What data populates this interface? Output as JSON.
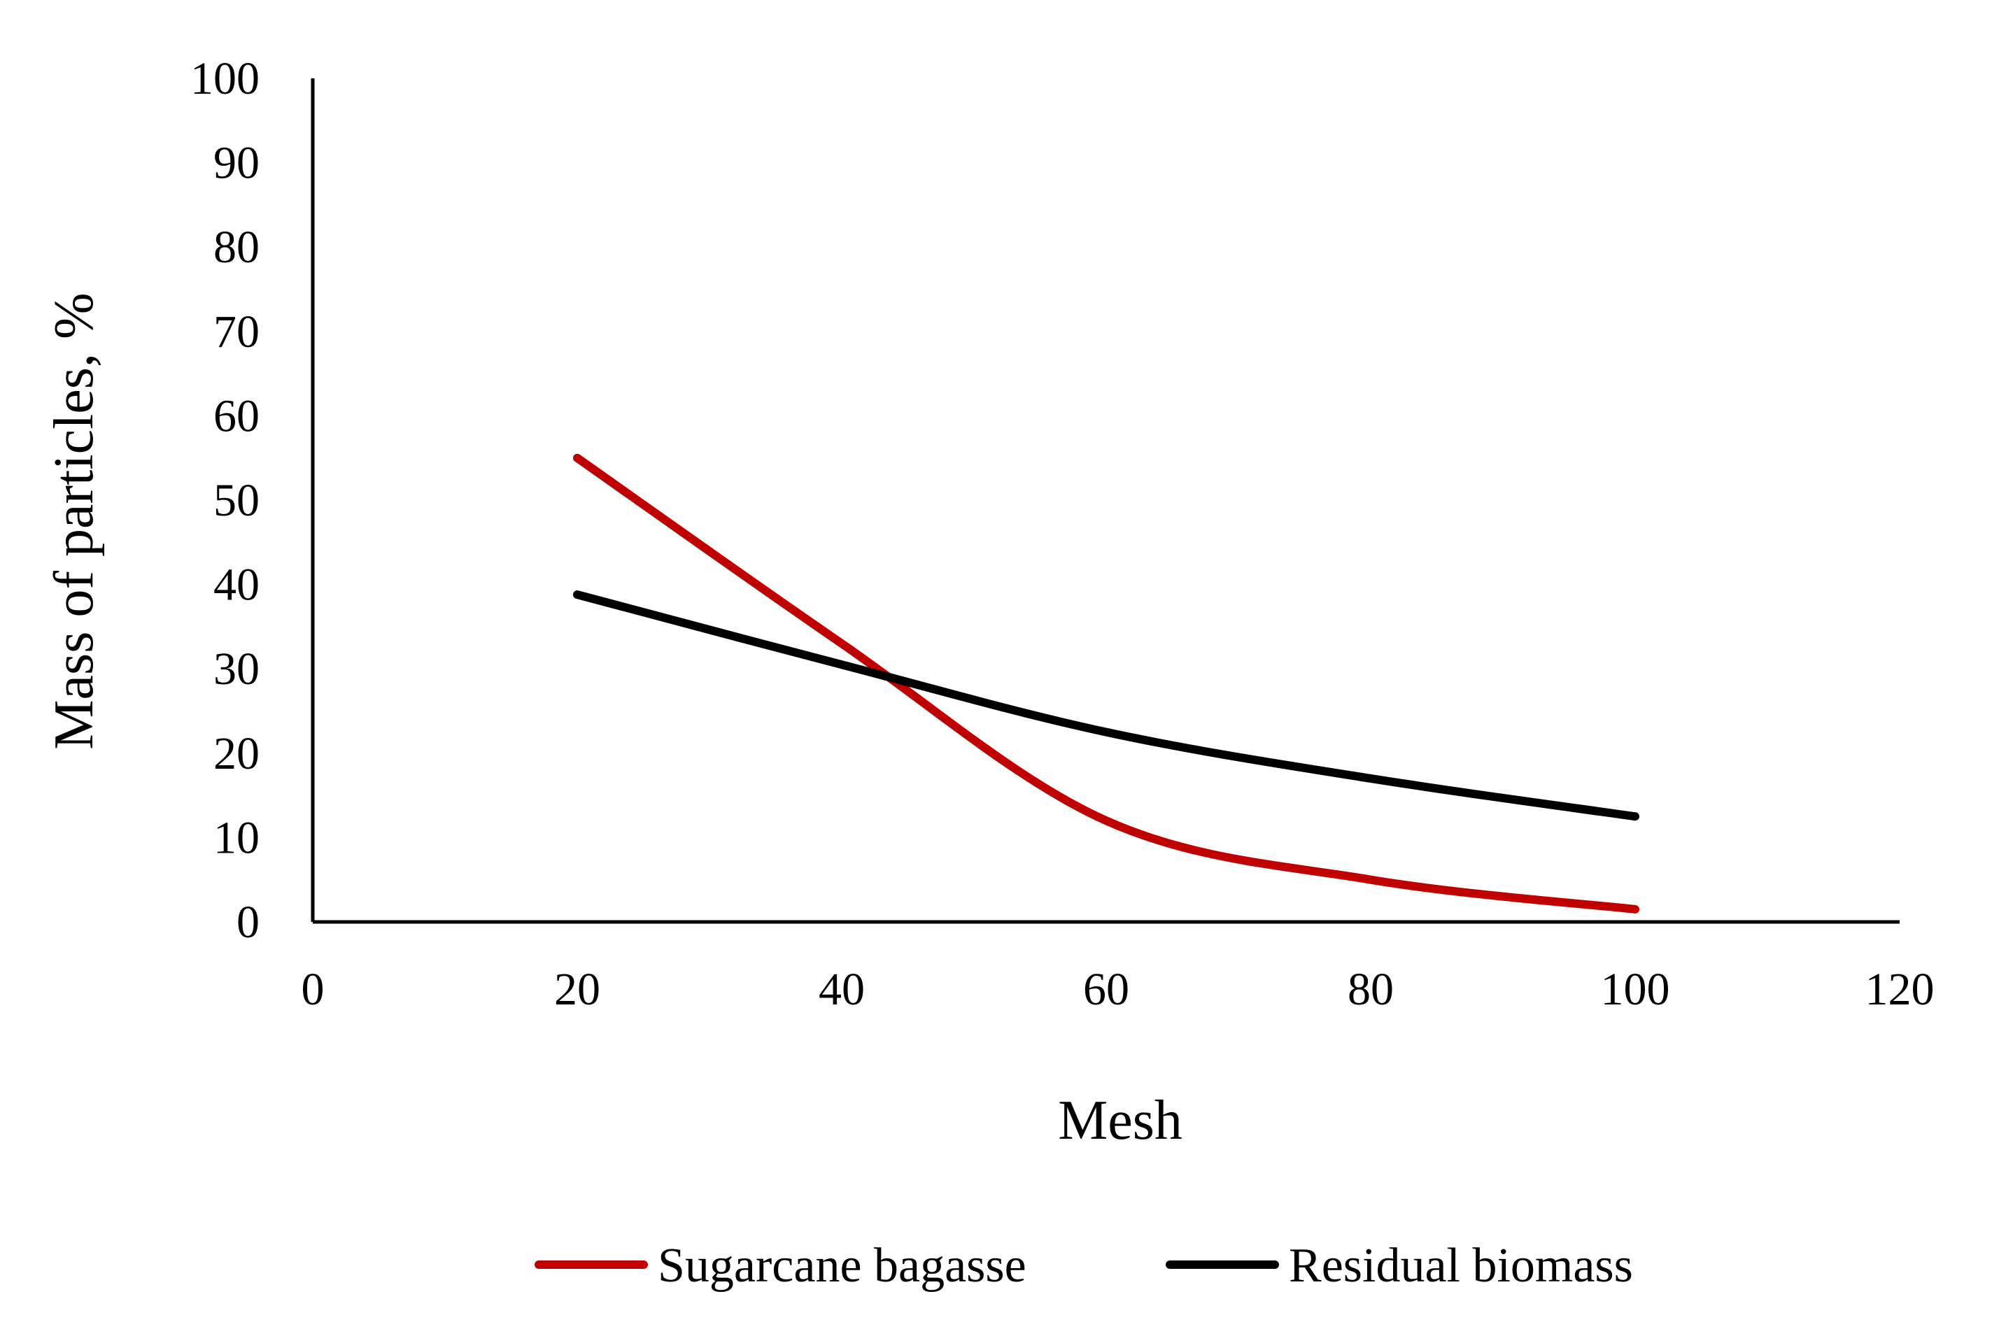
{
  "chart_data": {
    "type": "line",
    "title": "",
    "xlabel": "Mesh",
    "ylabel": "Mass of particles, %",
    "xlim": [
      0,
      120
    ],
    "ylim": [
      0,
      100
    ],
    "xticks": [
      0,
      20,
      40,
      60,
      80,
      100,
      120
    ],
    "yticks": [
      0,
      10,
      20,
      30,
      40,
      50,
      60,
      70,
      80,
      90,
      100
    ],
    "grid": false,
    "legend_position": "bottom",
    "smooth": true,
    "series": [
      {
        "name": "Sugarcane bagasse",
        "color": "#c00000",
        "x": [
          20,
          40,
          60,
          80,
          100
        ],
        "y": [
          55,
          33,
          12,
          5,
          1.5
        ]
      },
      {
        "name": "Residual biomass",
        "color": "#000000",
        "x": [
          20,
          40,
          60,
          80,
          100
        ],
        "y": [
          38.8,
          30.5,
          22.5,
          17,
          12.5
        ]
      }
    ]
  }
}
